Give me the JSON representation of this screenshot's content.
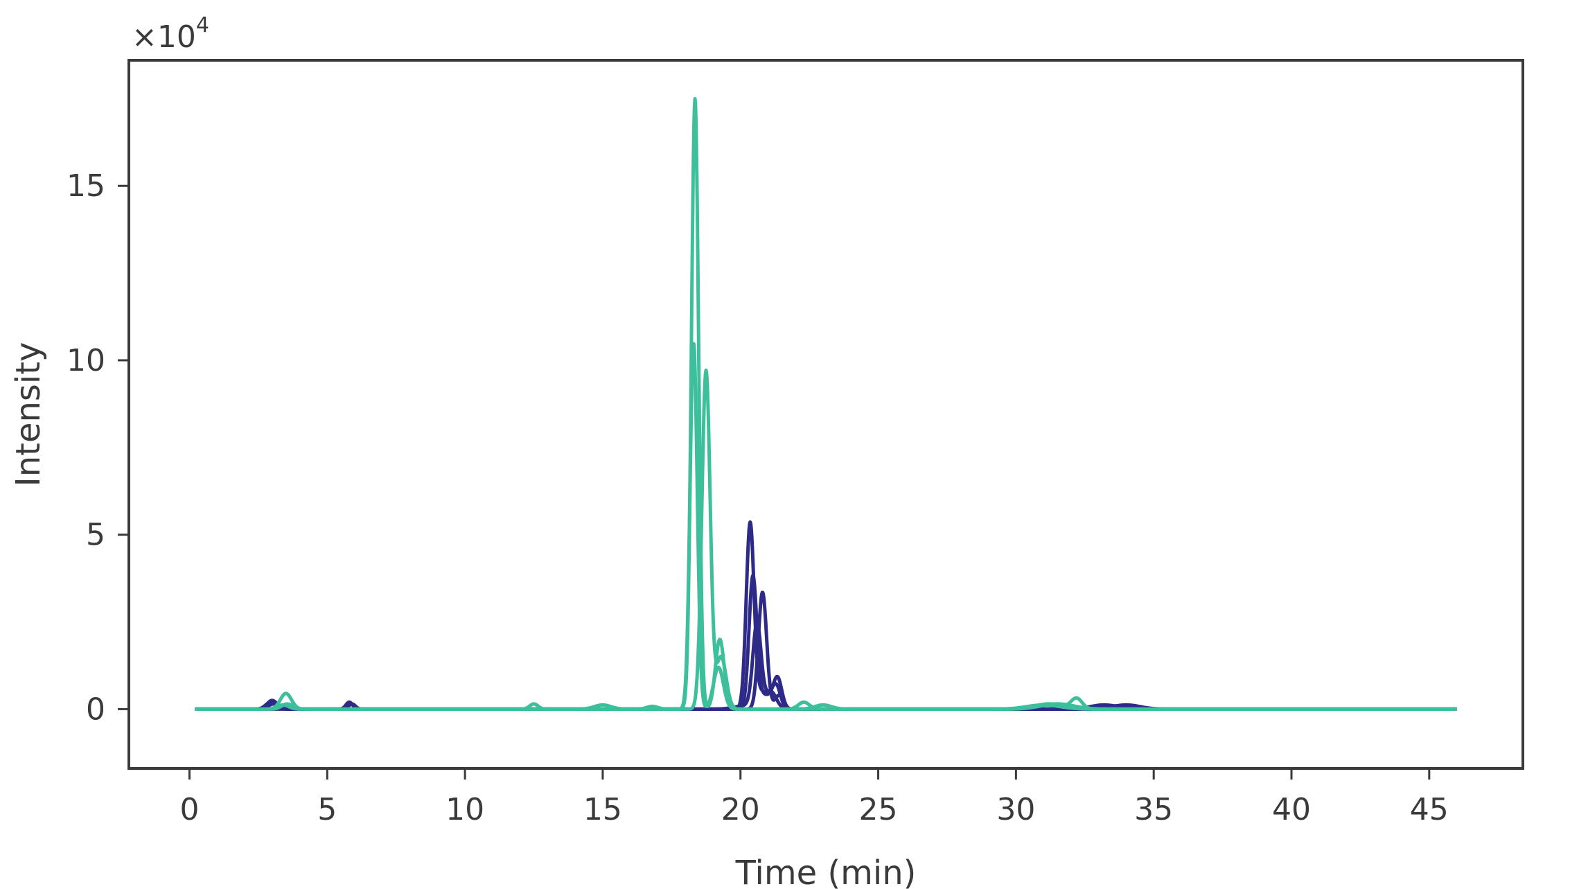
{
  "chart_data": {
    "type": "line",
    "title": "",
    "xlabel": "Time (min)",
    "ylabel": "Intensity",
    "y_scale_prefix": "×10",
    "y_scale_exponent": "4",
    "xlim": [
      -2.2,
      48.4
    ],
    "ylim": [
      -1.7,
      18.6
    ],
    "y_unit_multiplier": 10000,
    "x_ticks": [
      0,
      5,
      10,
      15,
      20,
      25,
      30,
      35,
      40,
      45
    ],
    "x_tick_labels": [
      "0",
      "5",
      "10",
      "15",
      "20",
      "25",
      "30",
      "35",
      "40",
      "45"
    ],
    "y_ticks": [
      0,
      5,
      10,
      15
    ],
    "y_tick_labels": [
      "0",
      "5",
      "10",
      "15"
    ],
    "grid": false,
    "legend": "none",
    "colors": {
      "navy": "#2e2a88",
      "teal": "#3dbf9c",
      "axis": "#3a3a3a"
    },
    "x_range": [
      0.2,
      46
    ],
    "series": [
      {
        "color": "navy",
        "peaks": [
          [
            3.0,
            0.25,
            0.18
          ],
          [
            5.8,
            0.2,
            0.12
          ],
          [
            20.35,
            5.2,
            0.14
          ],
          [
            20.8,
            0.5,
            0.3
          ],
          [
            21.3,
            0.6,
            0.15
          ],
          [
            33.2,
            0.12,
            0.5
          ]
        ]
      },
      {
        "color": "navy",
        "peaks": [
          [
            2.95,
            0.2,
            0.18
          ],
          [
            20.45,
            3.7,
            0.14
          ],
          [
            20.9,
            0.4,
            0.3
          ],
          [
            21.35,
            0.8,
            0.15
          ],
          [
            34.0,
            0.12,
            0.5
          ]
        ]
      },
      {
        "color": "navy",
        "peaks": [
          [
            3.05,
            0.15,
            0.18
          ],
          [
            5.9,
            0.15,
            0.12
          ],
          [
            20.8,
            3.35,
            0.15
          ],
          [
            21.4,
            0.4,
            0.15
          ],
          [
            33.8,
            0.1,
            0.5
          ]
        ]
      },
      {
        "color": "navy",
        "peaks": [
          [
            20.6,
            2.4,
            0.15
          ],
          [
            21.1,
            0.5,
            0.2
          ],
          [
            20.2,
            0.1,
            0.4
          ]
        ]
      },
      {
        "color": "teal",
        "peaks": [
          [
            3.5,
            0.45,
            0.2
          ],
          [
            12.5,
            0.15,
            0.15
          ],
          [
            15.0,
            0.12,
            0.3
          ],
          [
            18.35,
            17.5,
            0.13
          ],
          [
            19.25,
            2.0,
            0.16
          ],
          [
            22.3,
            0.2,
            0.2
          ],
          [
            32.2,
            0.3,
            0.2
          ],
          [
            31.2,
            0.15,
            0.5
          ]
        ]
      },
      {
        "color": "teal",
        "peaks": [
          [
            3.55,
            0.15,
            0.2
          ],
          [
            18.3,
            10.5,
            0.13
          ],
          [
            19.2,
            1.2,
            0.18
          ],
          [
            23.0,
            0.12,
            0.3
          ],
          [
            31.0,
            0.12,
            0.6
          ]
        ]
      },
      {
        "color": "teal",
        "peaks": [
          [
            3.4,
            0.12,
            0.2
          ],
          [
            18.75,
            9.7,
            0.15
          ],
          [
            19.3,
            1.5,
            0.18
          ],
          [
            16.8,
            0.08,
            0.2
          ],
          [
            31.5,
            0.15,
            0.6
          ]
        ]
      }
    ]
  }
}
